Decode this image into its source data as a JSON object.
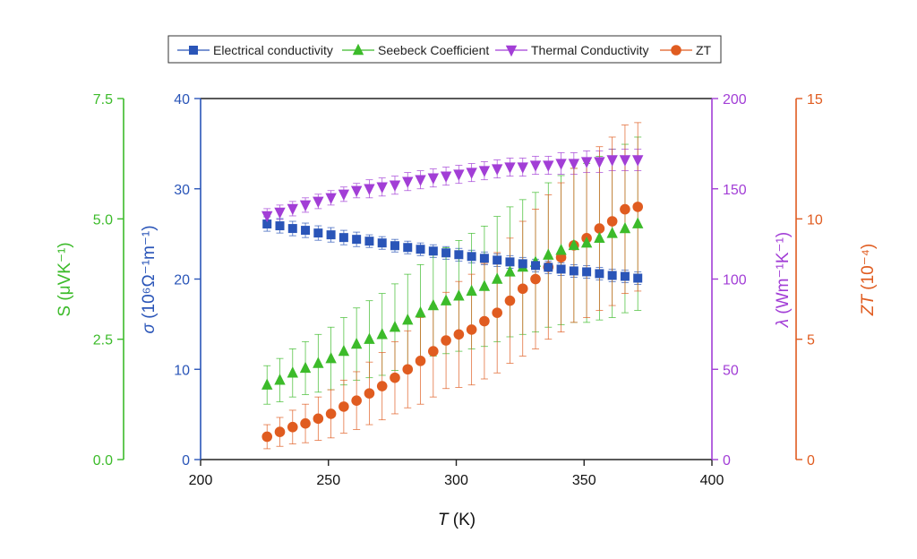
{
  "chart_data": {
    "type": "scatter",
    "legend": {
      "position": "top-center",
      "entries": [
        "Electrical conductivity",
        "Seebeck Coefficient",
        "Thermal Conductivity",
        "ZT"
      ]
    },
    "xaxis": {
      "label_italic": "T",
      "label_rest": " (K)",
      "range": [
        200,
        400
      ],
      "ticks": [
        "200",
        "250",
        "300",
        "350",
        "400"
      ]
    },
    "axes": {
      "sigma": {
        "color": "#2a55b8",
        "range": [
          0,
          40
        ],
        "ticks": [
          "0",
          "10",
          "20",
          "30",
          "40"
        ],
        "label_sym": "σ",
        "label_unit": " (10⁶Ω⁻¹m⁻¹)"
      },
      "seebeck": {
        "color": "#3cbb2a",
        "range": [
          0,
          7.5
        ],
        "ticks": [
          "0.0",
          "2.5",
          "5.0",
          "7.5"
        ],
        "label_sym": "S",
        "label_unit": " (μVK⁻¹)"
      },
      "lambda": {
        "color": "#a23ed6",
        "range": [
          0,
          200
        ],
        "ticks": [
          "0",
          "50",
          "100",
          "150",
          "200"
        ],
        "label_sym": "λ",
        "label_unit": " (Wm⁻¹K⁻¹)"
      },
      "zt": {
        "color": "#e05c20",
        "range": [
          0,
          15
        ],
        "ticks": [
          "0",
          "5",
          "10",
          "15"
        ],
        "label_sym": "ZT",
        "label_unit": " (10⁻⁴)"
      }
    },
    "x": [
      226,
      231,
      236,
      241,
      246,
      251,
      256,
      261,
      266,
      271,
      276,
      281,
      286,
      291,
      296,
      301,
      306,
      311,
      316,
      321,
      326,
      331,
      336,
      341,
      346,
      351,
      356,
      361,
      366,
      371
    ],
    "series": [
      {
        "name": "Electrical conductivity",
        "axis": "sigma",
        "marker": "square",
        "color": "#2a55b8",
        "values": [
          26.1,
          25.9,
          25.6,
          25.4,
          25.1,
          24.9,
          24.6,
          24.4,
          24.2,
          24.0,
          23.7,
          23.5,
          23.3,
          23.1,
          22.9,
          22.7,
          22.5,
          22.3,
          22.1,
          21.9,
          21.7,
          21.5,
          21.3,
          21.1,
          20.9,
          20.8,
          20.6,
          20.4,
          20.3,
          20.1
        ],
        "errors": [
          0.8,
          0.8,
          0.8,
          0.8,
          0.8,
          0.8,
          0.8,
          0.8,
          0.7,
          0.7,
          0.7,
          0.7,
          0.7,
          0.7,
          0.7,
          0.7,
          0.7,
          0.7,
          0.7,
          0.7,
          0.7,
          0.7,
          0.7,
          0.7,
          0.7,
          0.7,
          0.7,
          0.7,
          0.7,
          0.7
        ]
      },
      {
        "name": "Seebeck Coefficient",
        "axis": "seebeck",
        "marker": "triangle-up",
        "color": "#3cbb2a",
        "values": [
          1.55,
          1.65,
          1.8,
          1.9,
          2.0,
          2.1,
          2.25,
          2.4,
          2.5,
          2.6,
          2.75,
          2.9,
          3.05,
          3.2,
          3.3,
          3.4,
          3.5,
          3.6,
          3.75,
          3.9,
          4.0,
          4.1,
          4.25,
          4.35,
          4.45,
          4.5,
          4.6,
          4.7,
          4.8,
          4.9
        ],
        "errors": [
          0.4,
          0.45,
          0.5,
          0.55,
          0.6,
          0.65,
          0.7,
          0.75,
          0.8,
          0.85,
          0.9,
          0.95,
          1.0,
          1.05,
          1.1,
          1.15,
          1.2,
          1.25,
          1.3,
          1.35,
          1.4,
          1.45,
          1.5,
          1.55,
          1.6,
          1.65,
          1.7,
          1.75,
          1.75,
          1.8
        ]
      },
      {
        "name": "Thermal Conductivity",
        "axis": "lambda",
        "marker": "triangle-down",
        "color": "#a23ed6",
        "values": [
          135,
          137,
          139,
          141,
          143,
          145,
          147,
          149,
          150,
          151,
          152,
          154,
          155,
          156,
          157,
          158,
          159,
          160,
          161,
          162,
          162,
          163,
          163,
          164,
          164,
          165,
          165,
          166,
          166,
          166
        ],
        "errors": [
          4,
          4,
          4,
          4,
          4,
          4,
          4,
          4,
          5,
          5,
          5,
          5,
          5,
          5,
          5,
          5,
          5,
          5,
          5,
          5,
          5,
          5,
          5,
          6,
          6,
          6,
          6,
          6,
          6,
          6
        ]
      },
      {
        "name": "ZT",
        "axis": "zt",
        "marker": "circle",
        "color": "#e05c20",
        "values": [
          0.95,
          1.15,
          1.35,
          1.5,
          1.7,
          1.9,
          2.2,
          2.45,
          2.75,
          3.05,
          3.4,
          3.75,
          4.1,
          4.5,
          4.95,
          5.2,
          5.4,
          5.75,
          6.1,
          6.6,
          7.1,
          7.5,
          8.0,
          8.4,
          8.9,
          9.2,
          9.6,
          9.9,
          10.4,
          10.5
        ],
        "errors": [
          0.5,
          0.6,
          0.7,
          0.8,
          0.9,
          1.0,
          1.1,
          1.2,
          1.3,
          1.4,
          1.5,
          1.6,
          1.8,
          1.9,
          2.0,
          2.2,
          2.3,
          2.4,
          2.5,
          2.6,
          2.8,
          2.9,
          3.0,
          3.1,
          3.2,
          3.3,
          3.4,
          3.5,
          3.5,
          3.5
        ]
      }
    ]
  }
}
